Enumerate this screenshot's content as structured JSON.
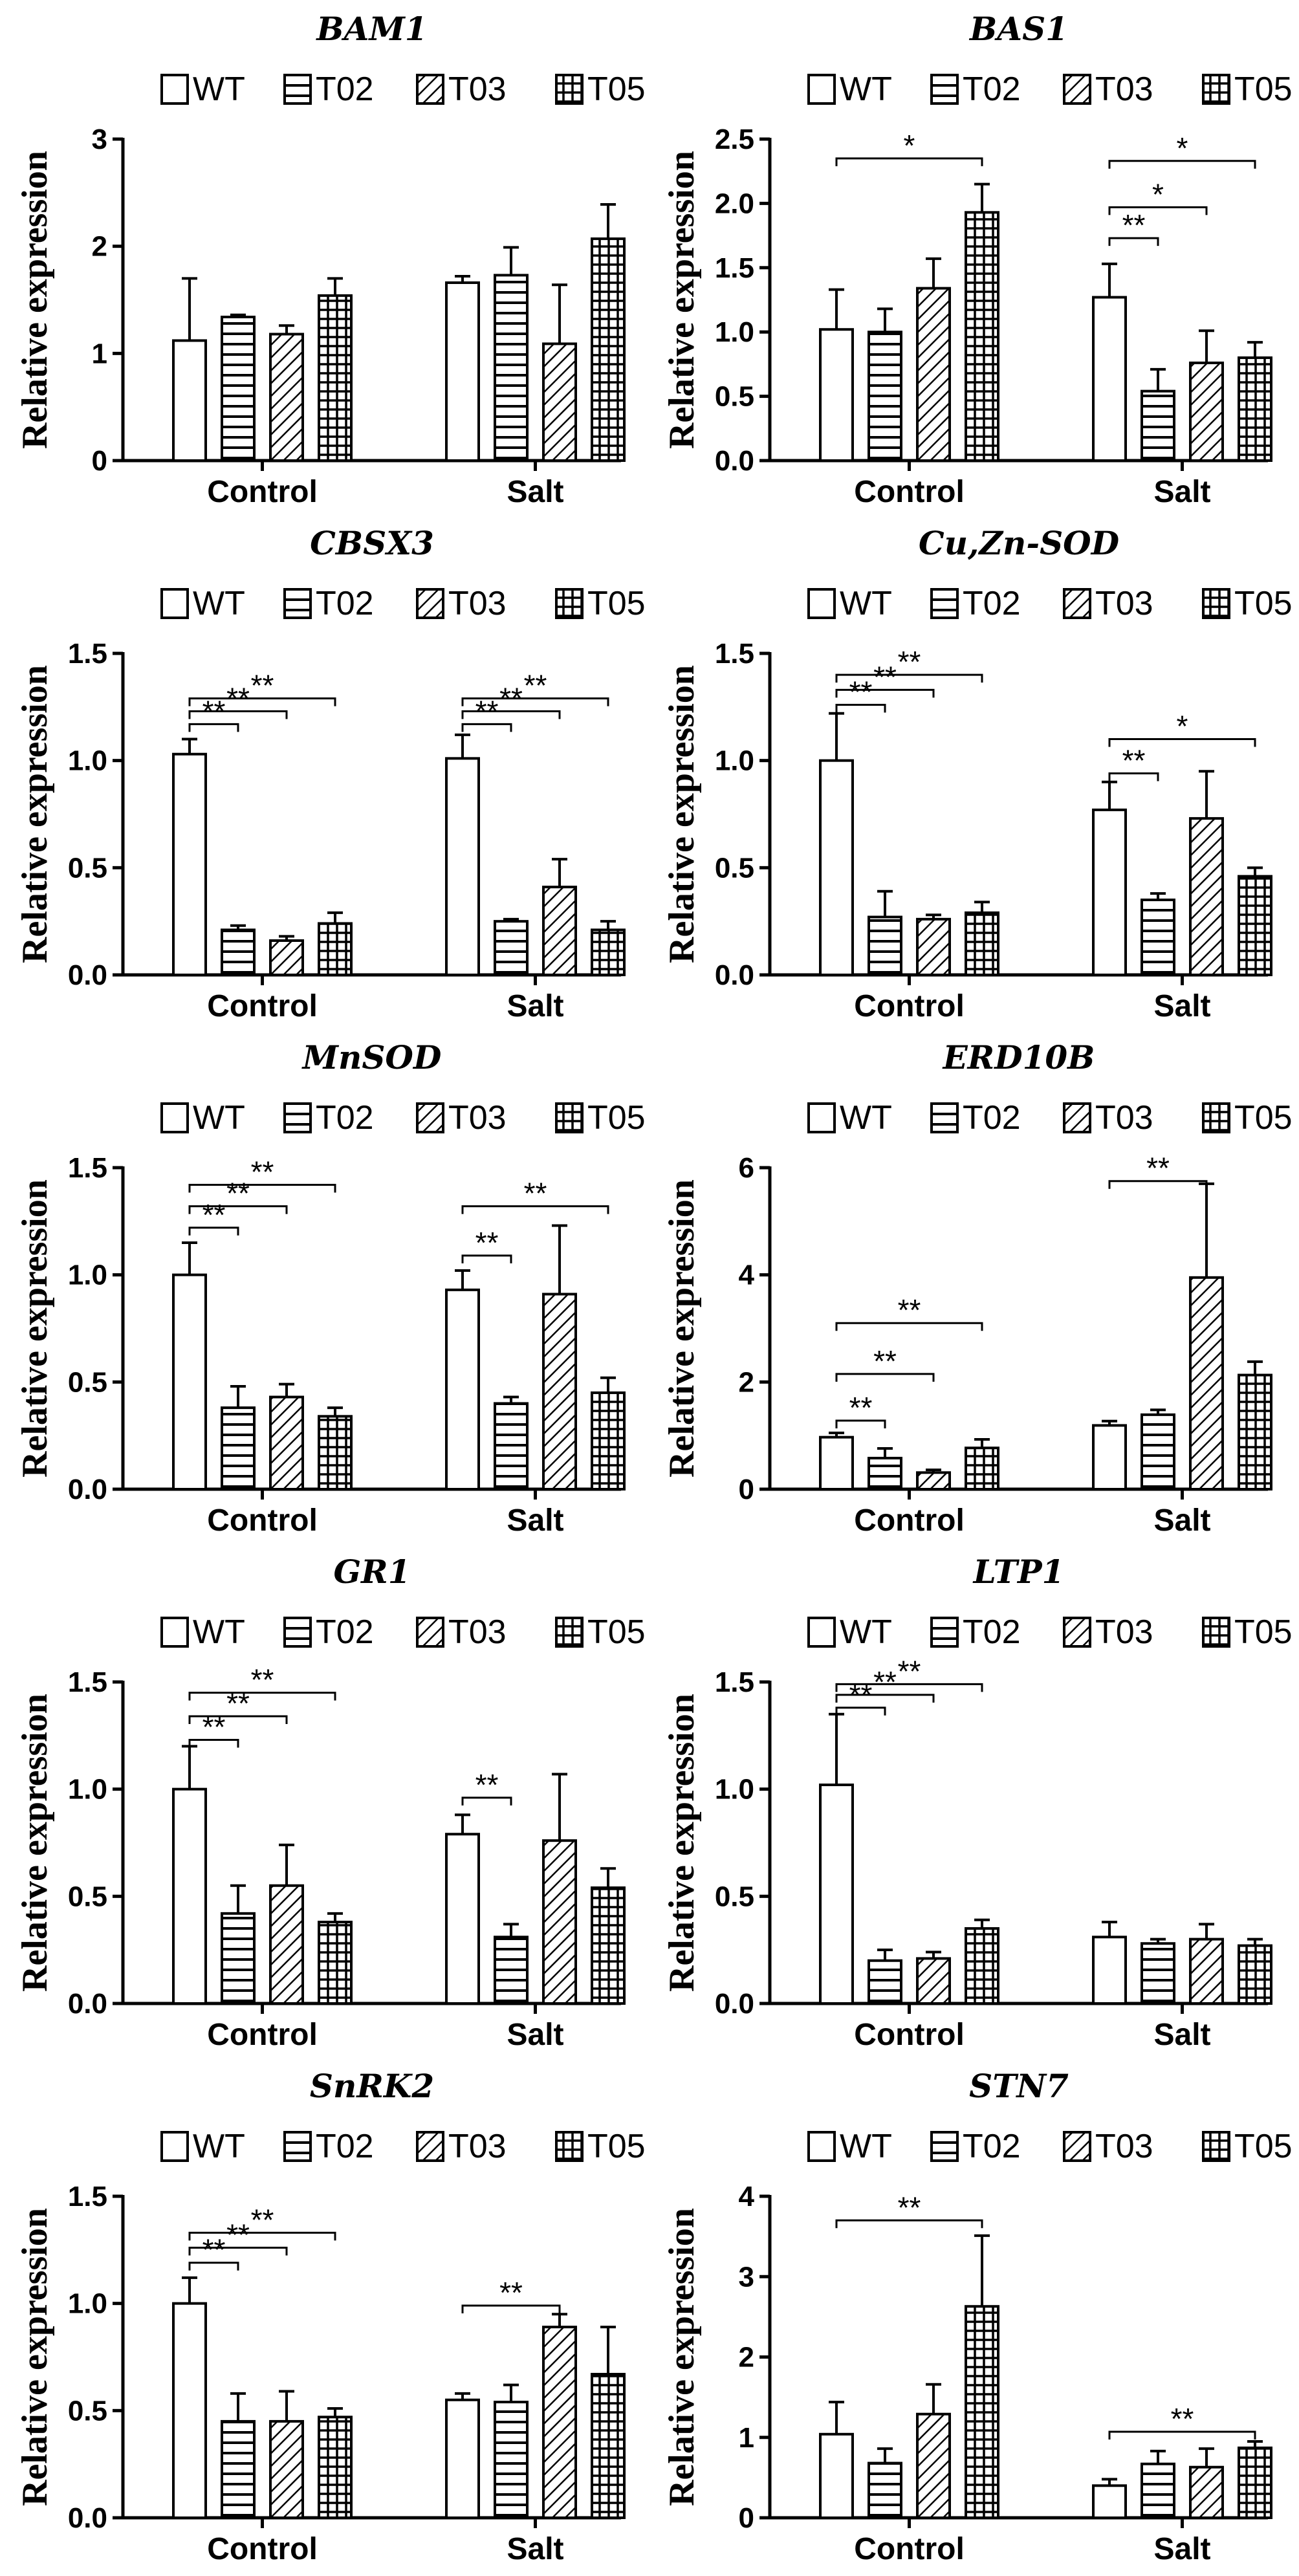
{
  "chart_data": [
    {
      "type": "bar",
      "title": "BAM1",
      "ylabel": "Relative expression",
      "categories": [
        "Control",
        "Salt"
      ],
      "ylim": [
        0,
        3
      ],
      "yticks": [
        0,
        1,
        2,
        3
      ],
      "ytick_labels": [
        "0",
        "1",
        "2",
        "3"
      ],
      "series": [
        {
          "name": "WT",
          "values": [
            1.12,
            1.66
          ],
          "errors": [
            0.58,
            0.06
          ]
        },
        {
          "name": "T02",
          "values": [
            1.34,
            1.73
          ],
          "errors": [
            0.02,
            0.26
          ]
        },
        {
          "name": "T03",
          "values": [
            1.18,
            1.09
          ],
          "errors": [
            0.08,
            0.55
          ]
        },
        {
          "name": "T05",
          "values": [
            1.54,
            2.07
          ],
          "errors": [
            0.16,
            0.32
          ]
        }
      ],
      "significance": []
    },
    {
      "type": "bar",
      "title": "BAS1",
      "ylabel": "Relative expression",
      "categories": [
        "Control",
        "Salt"
      ],
      "ylim": [
        0,
        2.5
      ],
      "yticks": [
        0,
        0.5,
        1,
        1.5,
        2,
        2.5
      ],
      "ytick_labels": [
        "0.0",
        "0.5",
        "1.0",
        "1.5",
        "2.0",
        "2.5"
      ],
      "series": [
        {
          "name": "WT",
          "values": [
            1.02,
            1.27
          ],
          "errors": [
            0.31,
            0.26
          ]
        },
        {
          "name": "T02",
          "values": [
            1.0,
            0.54
          ],
          "errors": [
            0.18,
            0.17
          ]
        },
        {
          "name": "T03",
          "values": [
            1.34,
            0.76
          ],
          "errors": [
            0.23,
            0.25
          ]
        },
        {
          "name": "T05",
          "values": [
            1.93,
            0.8
          ],
          "errors": [
            0.22,
            0.12
          ]
        }
      ],
      "significance": [
        {
          "group": 0,
          "to": 3,
          "label": "*",
          "level": 2.35
        },
        {
          "group": 1,
          "to": 1,
          "label": "**",
          "level": 1.73
        },
        {
          "group": 1,
          "to": 2,
          "label": "*",
          "level": 1.97
        },
        {
          "group": 1,
          "to": 3,
          "label": "*",
          "level": 2.33
        }
      ]
    },
    {
      "type": "bar",
      "title": "CBSX3",
      "ylabel": "Relative expression",
      "categories": [
        "Control",
        "Salt"
      ],
      "ylim": [
        0,
        1.5
      ],
      "yticks": [
        0,
        0.5,
        1,
        1.5
      ],
      "ytick_labels": [
        "0.0",
        "0.5",
        "1.0",
        "1.5"
      ],
      "series": [
        {
          "name": "WT",
          "values": [
            1.03,
            1.01
          ],
          "errors": [
            0.07,
            0.11
          ]
        },
        {
          "name": "T02",
          "values": [
            0.21,
            0.25
          ],
          "errors": [
            0.02,
            0.01
          ]
        },
        {
          "name": "T03",
          "values": [
            0.16,
            0.41
          ],
          "errors": [
            0.02,
            0.13
          ]
        },
        {
          "name": "T05",
          "values": [
            0.24,
            0.21
          ],
          "errors": [
            0.05,
            0.04
          ]
        }
      ],
      "significance": [
        {
          "group": 0,
          "to": 1,
          "label": "**",
          "level": 1.17
        },
        {
          "group": 0,
          "to": 2,
          "label": "**",
          "level": 1.23
        },
        {
          "group": 0,
          "to": 3,
          "label": "**",
          "level": 1.29
        },
        {
          "group": 1,
          "to": 1,
          "label": "**",
          "level": 1.17
        },
        {
          "group": 1,
          "to": 2,
          "label": "**",
          "level": 1.23
        },
        {
          "group": 1,
          "to": 3,
          "label": "**",
          "level": 1.29
        }
      ]
    },
    {
      "type": "bar",
      "title": "Cu,Zn-SOD",
      "ylabel": "Relative expression",
      "categories": [
        "Control",
        "Salt"
      ],
      "ylim": [
        0,
        1.5
      ],
      "yticks": [
        0,
        0.5,
        1,
        1.5
      ],
      "ytick_labels": [
        "0.0",
        "0.5",
        "1.0",
        "1.5"
      ],
      "series": [
        {
          "name": "WT",
          "values": [
            1.0,
            0.77
          ],
          "errors": [
            0.22,
            0.13
          ]
        },
        {
          "name": "T02",
          "values": [
            0.27,
            0.35
          ],
          "errors": [
            0.12,
            0.03
          ]
        },
        {
          "name": "T03",
          "values": [
            0.26,
            0.73
          ],
          "errors": [
            0.02,
            0.22
          ]
        },
        {
          "name": "T05",
          "values": [
            0.29,
            0.46
          ],
          "errors": [
            0.05,
            0.04
          ]
        }
      ],
      "significance": [
        {
          "group": 0,
          "to": 1,
          "label": "**",
          "level": 1.26
        },
        {
          "group": 0,
          "to": 2,
          "label": "**",
          "level": 1.33
        },
        {
          "group": 0,
          "to": 3,
          "label": "**",
          "level": 1.4
        },
        {
          "group": 1,
          "to": 1,
          "label": "**",
          "level": 0.94
        },
        {
          "group": 1,
          "to": 3,
          "label": "*",
          "level": 1.1
        }
      ]
    },
    {
      "type": "bar",
      "title": "MnSOD",
      "ylabel": "Relative expression",
      "categories": [
        "Control",
        "Salt"
      ],
      "ylim": [
        0,
        1.5
      ],
      "yticks": [
        0,
        0.5,
        1,
        1.5
      ],
      "ytick_labels": [
        "0.0",
        "0.5",
        "1.0",
        "1.5"
      ],
      "series": [
        {
          "name": "WT",
          "values": [
            1.0,
            0.93
          ],
          "errors": [
            0.15,
            0.09
          ]
        },
        {
          "name": "T02",
          "values": [
            0.38,
            0.4
          ],
          "errors": [
            0.1,
            0.03
          ]
        },
        {
          "name": "T03",
          "values": [
            0.43,
            0.91
          ],
          "errors": [
            0.06,
            0.32
          ]
        },
        {
          "name": "T05",
          "values": [
            0.34,
            0.45
          ],
          "errors": [
            0.04,
            0.07
          ]
        }
      ],
      "significance": [
        {
          "group": 0,
          "to": 1,
          "label": "**",
          "level": 1.22
        },
        {
          "group": 0,
          "to": 2,
          "label": "**",
          "level": 1.32
        },
        {
          "group": 0,
          "to": 3,
          "label": "**",
          "level": 1.42
        },
        {
          "group": 1,
          "to": 1,
          "label": "**",
          "level": 1.09
        },
        {
          "group": 1,
          "to": 3,
          "label": "**",
          "level": 1.32
        }
      ]
    },
    {
      "type": "bar",
      "title": "ERD10B",
      "ylabel": "Relative expression",
      "categories": [
        "Control",
        "Salt"
      ],
      "ylim": [
        0,
        6
      ],
      "yticks": [
        0,
        2,
        4,
        6
      ],
      "ytick_labels": [
        "0",
        "2",
        "4",
        "6"
      ],
      "series": [
        {
          "name": "WT",
          "values": [
            0.97,
            1.19
          ],
          "errors": [
            0.08,
            0.08
          ]
        },
        {
          "name": "T02",
          "values": [
            0.58,
            1.39
          ],
          "errors": [
            0.18,
            0.09
          ]
        },
        {
          "name": "T03",
          "values": [
            0.31,
            3.95
          ],
          "errors": [
            0.05,
            1.75
          ]
        },
        {
          "name": "T05",
          "values": [
            0.77,
            2.13
          ],
          "errors": [
            0.16,
            0.25
          ]
        }
      ],
      "significance": [
        {
          "group": 0,
          "to": 1,
          "label": "**",
          "level": 1.28
        },
        {
          "group": 0,
          "to": 2,
          "label": "**",
          "level": 2.15
        },
        {
          "group": 0,
          "to": 3,
          "label": "**",
          "level": 3.1
        },
        {
          "group": 1,
          "to": 2,
          "label": "**",
          "level": 5.75
        }
      ]
    },
    {
      "type": "bar",
      "title": "GR1",
      "ylabel": "Relative expression",
      "categories": [
        "Control",
        "Salt"
      ],
      "ylim": [
        0,
        1.5
      ],
      "yticks": [
        0,
        0.5,
        1,
        1.5
      ],
      "ytick_labels": [
        "0.0",
        "0.5",
        "1.0",
        "1.5"
      ],
      "series": [
        {
          "name": "WT",
          "values": [
            1.0,
            0.79
          ],
          "errors": [
            0.2,
            0.09
          ]
        },
        {
          "name": "T02",
          "values": [
            0.42,
            0.31
          ],
          "errors": [
            0.13,
            0.06
          ]
        },
        {
          "name": "T03",
          "values": [
            0.55,
            0.76
          ],
          "errors": [
            0.19,
            0.31
          ]
        },
        {
          "name": "T05",
          "values": [
            0.38,
            0.54
          ],
          "errors": [
            0.04,
            0.09
          ]
        }
      ],
      "significance": [
        {
          "group": 0,
          "to": 1,
          "label": "**",
          "level": 1.23
        },
        {
          "group": 0,
          "to": 2,
          "label": "**",
          "level": 1.34
        },
        {
          "group": 0,
          "to": 3,
          "label": "**",
          "level": 1.45
        },
        {
          "group": 1,
          "to": 1,
          "label": "**",
          "level": 0.96
        }
      ]
    },
    {
      "type": "bar",
      "title": "LTP1",
      "ylabel": "Relative expression",
      "categories": [
        "Control",
        "Salt"
      ],
      "ylim": [
        0,
        1.5
      ],
      "yticks": [
        0,
        0.5,
        1,
        1.5
      ],
      "ytick_labels": [
        "0.0",
        "0.5",
        "1.0",
        "1.5"
      ],
      "series": [
        {
          "name": "WT",
          "values": [
            1.02,
            0.31
          ],
          "errors": [
            0.33,
            0.07
          ]
        },
        {
          "name": "T02",
          "values": [
            0.2,
            0.28
          ],
          "errors": [
            0.05,
            0.02
          ]
        },
        {
          "name": "T03",
          "values": [
            0.21,
            0.3
          ],
          "errors": [
            0.03,
            0.07
          ]
        },
        {
          "name": "T05",
          "values": [
            0.35,
            0.27
          ],
          "errors": [
            0.04,
            0.03
          ]
        }
      ],
      "significance": [
        {
          "group": 0,
          "to": 1,
          "label": "**",
          "level": 1.38
        },
        {
          "group": 0,
          "to": 2,
          "label": "**",
          "level": 1.44
        },
        {
          "group": 0,
          "to": 3,
          "label": "**",
          "level": 1.49
        }
      ]
    },
    {
      "type": "bar",
      "title": "SnRK2",
      "ylabel": "Relative expression",
      "categories": [
        "Control",
        "Salt"
      ],
      "ylim": [
        0,
        1.5
      ],
      "yticks": [
        0,
        0.5,
        1,
        1.5
      ],
      "ytick_labels": [
        "0.0",
        "0.5",
        "1.0",
        "1.5"
      ],
      "series": [
        {
          "name": "WT",
          "values": [
            1.0,
            0.55
          ],
          "errors": [
            0.12,
            0.03
          ]
        },
        {
          "name": "T02",
          "values": [
            0.45,
            0.54
          ],
          "errors": [
            0.13,
            0.08
          ]
        },
        {
          "name": "T03",
          "values": [
            0.45,
            0.89
          ],
          "errors": [
            0.14,
            0.06
          ]
        },
        {
          "name": "T05",
          "values": [
            0.47,
            0.67
          ],
          "errors": [
            0.04,
            0.22
          ]
        }
      ],
      "significance": [
        {
          "group": 0,
          "to": 1,
          "label": "**",
          "level": 1.19
        },
        {
          "group": 0,
          "to": 2,
          "label": "**",
          "level": 1.26
        },
        {
          "group": 0,
          "to": 3,
          "label": "**",
          "level": 1.33
        },
        {
          "group": 1,
          "to": 2,
          "label": "**",
          "level": 0.99
        }
      ]
    },
    {
      "type": "bar",
      "title": "STN7",
      "ylabel": "Relative expression",
      "categories": [
        "Control",
        "Salt"
      ],
      "ylim": [
        0,
        4
      ],
      "yticks": [
        0,
        1,
        2,
        3,
        4
      ],
      "ytick_labels": [
        "0",
        "1",
        "2",
        "3",
        "4"
      ],
      "series": [
        {
          "name": "WT",
          "values": [
            1.04,
            0.4
          ],
          "errors": [
            0.4,
            0.08
          ]
        },
        {
          "name": "T02",
          "values": [
            0.68,
            0.67
          ],
          "errors": [
            0.18,
            0.16
          ]
        },
        {
          "name": "T03",
          "values": [
            1.29,
            0.63
          ],
          "errors": [
            0.37,
            0.23
          ]
        },
        {
          "name": "T05",
          "values": [
            2.63,
            0.87
          ],
          "errors": [
            0.88,
            0.08
          ]
        }
      ],
      "significance": [
        {
          "group": 0,
          "to": 3,
          "label": "**",
          "level": 3.7
        },
        {
          "group": 1,
          "to": 3,
          "label": "**",
          "level": 1.07
        }
      ]
    }
  ]
}
